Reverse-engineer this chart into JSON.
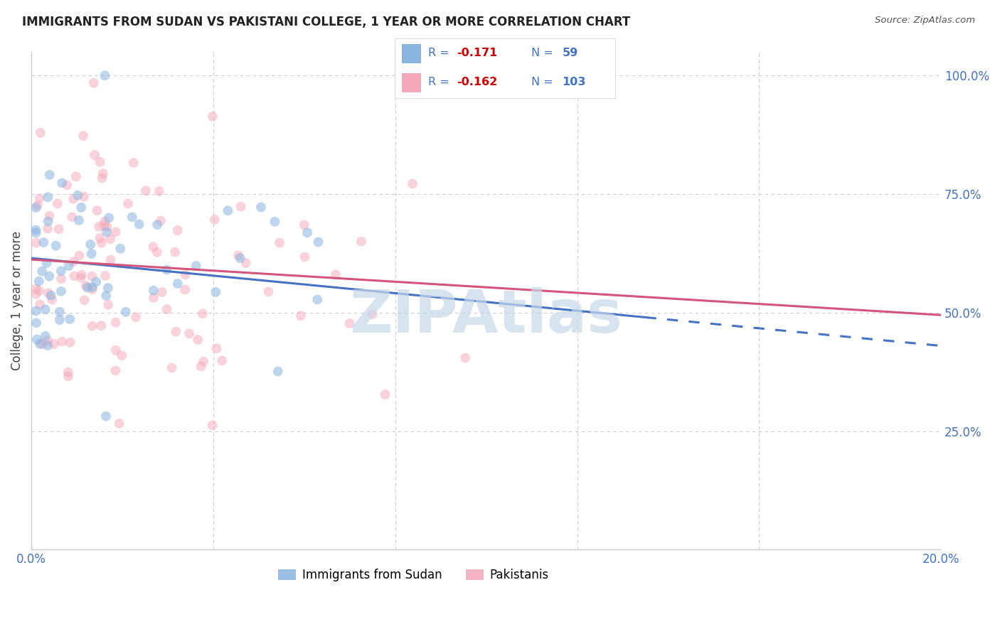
{
  "title": "IMMIGRANTS FROM SUDAN VS PAKISTANI COLLEGE, 1 YEAR OR MORE CORRELATION CHART",
  "source": "Source: ZipAtlas.com",
  "ylabel": "College, 1 year or more",
  "xlim": [
    0.0,
    0.2
  ],
  "ylim": [
    0.0,
    1.05
  ],
  "xtick_positions": [
    0.0,
    0.04,
    0.08,
    0.12,
    0.16,
    0.2
  ],
  "xticklabels": [
    "0.0%",
    "",
    "",
    "",
    "",
    "20.0%"
  ],
  "yticks_right": [
    0.25,
    0.5,
    0.75,
    1.0
  ],
  "yticklabels_right": [
    "25.0%",
    "50.0%",
    "75.0%",
    "100.0%"
  ],
  "legend_labels": [
    "Immigrants from Sudan",
    "Pakistanis"
  ],
  "legend_R": [
    "-0.171",
    "-0.162"
  ],
  "legend_N": [
    "59",
    "103"
  ],
  "blue_color": "#8ab4e0",
  "pink_color": "#f4a7b9",
  "blue_line_color": "#4472c4",
  "pink_line_color": "#d4547a",
  "blue_scatter_alpha": 0.55,
  "pink_scatter_alpha": 0.5,
  "marker_size": 100,
  "watermark": "ZIPAtlas",
  "watermark_color": "#c8d8ea",
  "grid_color": "#cccccc",
  "tick_label_color": "#4472c4",
  "text_color": "#222222",
  "source_color": "#555555",
  "ylabel_color": "#444444",
  "legend_text_color": "#4472c4",
  "legend_R_color": "#cc0000",
  "blue_line_solid_end": 0.135,
  "blue_line_dash_start": 0.135,
  "blue_line_end": 0.2,
  "pink_line_end": 0.2,
  "blue_intercept": 0.615,
  "blue_slope": -0.9,
  "pink_intercept": 0.612,
  "pink_slope": -0.55
}
